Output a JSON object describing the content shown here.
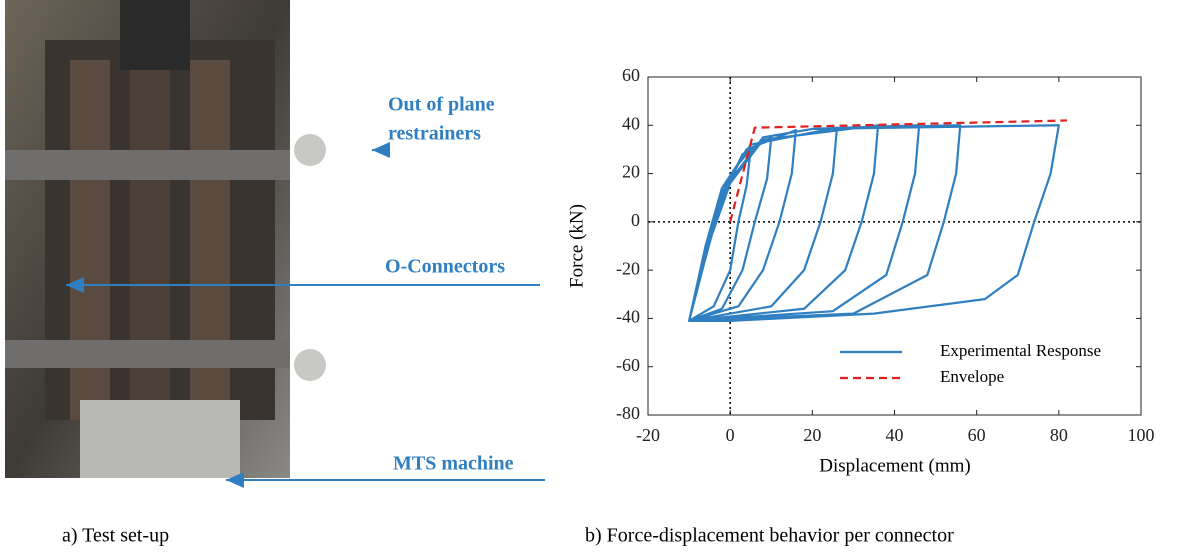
{
  "photo": {
    "labels": [
      [
        "Out of plane",
        "restrainers"
      ],
      [
        "O-Connectors"
      ],
      [
        "MTS machine"
      ]
    ],
    "caption": "a)  Test set-up"
  },
  "caption": "b)  Force-displacement behavior per connector",
  "chart_data": {
    "type": "line",
    "xlabel": "Displacement (mm)",
    "ylabel": "Force (kN)",
    "xlim": [
      -20,
      100
    ],
    "xticks": [
      -20,
      0,
      20,
      40,
      60,
      80,
      100
    ],
    "ylim": [
      -80,
      60
    ],
    "yticks": [
      -80,
      -60,
      -40,
      -20,
      0,
      20,
      40,
      60
    ],
    "zero_lines": true,
    "legend": "lower right",
    "series": [
      {
        "name": "Experimental Response",
        "color": "#2f7fc1",
        "dash": false,
        "x": [
          -10,
          -6,
          -2,
          2,
          5,
          4,
          2,
          0,
          -4,
          -10,
          -6,
          -2,
          3,
          10,
          9,
          6,
          3,
          -2,
          -10,
          -6,
          -2,
          4,
          16,
          15,
          12,
          8,
          2,
          -10,
          -6,
          -2,
          5,
          26,
          25,
          22,
          18,
          10,
          -10,
          -5,
          0,
          8,
          36,
          35,
          32,
          28,
          18,
          -10,
          -5,
          0,
          8,
          20,
          46,
          45,
          42,
          38,
          25,
          -10,
          -5,
          0,
          8,
          20,
          56,
          55,
          52,
          48,
          30,
          -10,
          -5,
          0,
          8,
          20,
          80,
          78,
          74,
          70,
          62,
          35,
          0,
          -10
        ],
        "values": [
          -41,
          -15,
          10,
          24,
          30,
          15,
          0,
          -20,
          -35,
          -41,
          -15,
          10,
          28,
          35,
          18,
          0,
          -20,
          -36,
          -41,
          -12,
          12,
          30,
          38,
          20,
          0,
          -20,
          -35,
          -41,
          -10,
          14,
          32,
          39,
          20,
          0,
          -20,
          -35,
          -41,
          -8,
          16,
          34,
          40,
          20,
          0,
          -20,
          -36,
          -41,
          -6,
          17,
          35,
          38.5,
          40,
          20,
          0,
          -22,
          -37,
          -41,
          -6,
          17,
          35,
          38.5,
          40,
          20,
          0,
          -22,
          -38,
          -41,
          -6,
          17,
          35,
          38.5,
          40,
          20,
          0,
          -22,
          -32,
          -38,
          -41,
          -41
        ]
      },
      {
        "name": "Envelope",
        "color": "#e0201e",
        "dash": true,
        "x": [
          0,
          6,
          82
        ],
        "values": [
          0,
          39,
          42
        ]
      }
    ]
  }
}
